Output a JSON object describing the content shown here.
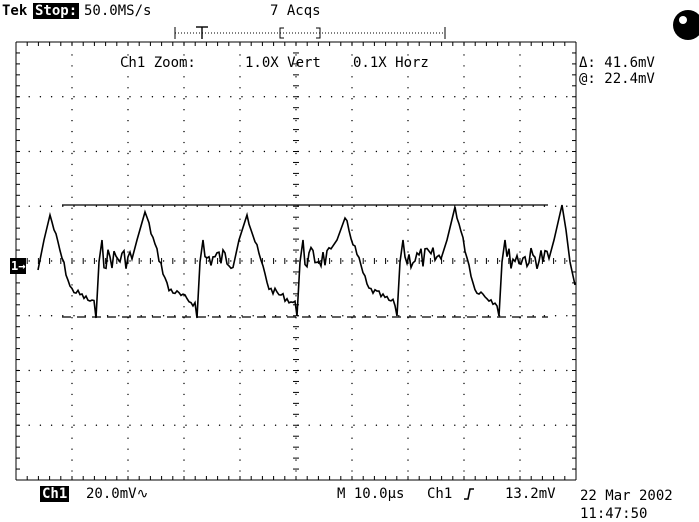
{
  "header": {
    "brand": "Tek",
    "run_state": "Stop:",
    "sample_rate": "50.0MS/s",
    "acquisitions": "7 Acqs"
  },
  "zoom": {
    "label": "Ch1 Zoom:",
    "vertical": "1.0X Vert",
    "horizontal": "0.1X Horz"
  },
  "cursors": {
    "delta": "Δ: 41.6mV",
    "at": "@: 22.4mV"
  },
  "channel_marker": "1→",
  "footer": {
    "channel": "Ch1",
    "volts_per_div": "20.0mV∿",
    "timebase": "M 10.0µs",
    "trigger_source": "Ch1",
    "trigger_slope_icon": "rising-edge-icon",
    "trigger_level": "13.2mV",
    "date": "22 Mar 2002",
    "time": "11:47:50"
  },
  "colors": {
    "trace": "#000000",
    "graticule": "#000000",
    "background": "#ffffff"
  },
  "trace_shape": "repeating sawtooth-like ripple with noisy plateaus",
  "icons": {
    "busy": "busy-indicator-icon",
    "trigger": "trigger-position-icon"
  }
}
